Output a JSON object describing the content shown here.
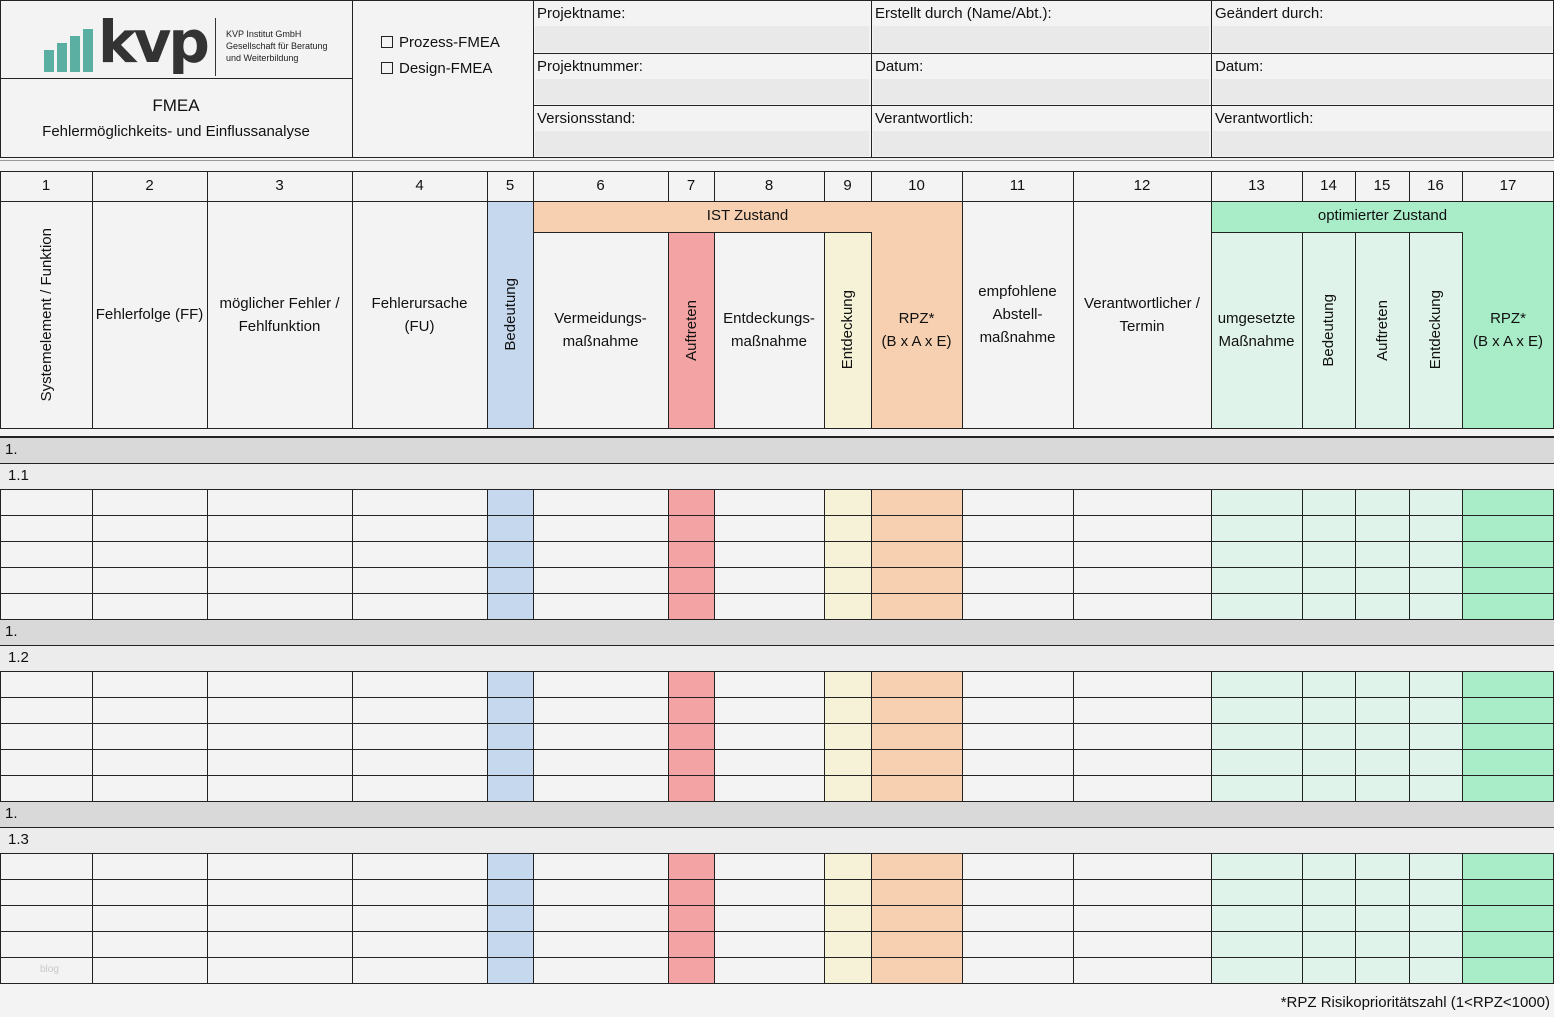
{
  "header": {
    "logo": {
      "text": "kvp",
      "company_lines": [
        "KVP Institut GmbH",
        "Gesellschaft für Beratung",
        "und Weiterbildung"
      ],
      "bar_color": "#5aaea2"
    },
    "title": "FMEA",
    "subtitle": "Fehlermöglichkeits- und Einflussanalyse",
    "checkboxes": [
      {
        "label": "Prozess-FMEA",
        "checked": false
      },
      {
        "label": "Design-FMEA",
        "checked": false
      }
    ],
    "fields": [
      [
        "Projektname:",
        "Erstellt durch (Name/Abt.):",
        "Geändert durch:"
      ],
      [
        "Projektnummer:",
        "Datum:",
        "Datum:"
      ],
      [
        "Versionsstand:",
        "Verantwortlich:",
        "Verantwortlich:"
      ]
    ]
  },
  "columns": {
    "numbers": [
      "1",
      "2",
      "3",
      "4",
      "5",
      "6",
      "7",
      "8",
      "9",
      "10",
      "11",
      "12",
      "13",
      "14",
      "15",
      "16",
      "17"
    ],
    "group_ist": "IST Zustand",
    "group_opt": "optimierter Zustand",
    "labels": [
      "Systemelement / Funktion",
      "Fehlerfolge (FF)",
      "möglicher Fehler / Fehlfunktion",
      "Fehlerursache (FU)",
      "Bedeutung",
      "Vermeidungs-maßnahme",
      "Auftreten",
      "Entdeckungs-maßnahme",
      "Entdeckung",
      "RPZ* (B x A x E)",
      "empfohlene Abstell-maßnahme",
      "Verantwortlicher / Termin",
      "umgesetzte Maßnahme",
      "Bedeutung",
      "Auftreten",
      "Entdeckung",
      "RPZ* (B x A x E)"
    ],
    "label_lines": [
      [
        "Systemelement / Funktion"
      ],
      [
        "Fehlerfolge (FF)"
      ],
      [
        "möglicher Fehler /",
        "Fehlfunktion"
      ],
      [
        "Fehlerursache",
        "(FU)"
      ],
      [
        "Bedeutung"
      ],
      [
        "Vermeidungs-",
        "maßnahme"
      ],
      [
        "Auftreten"
      ],
      [
        "Entdeckungs-",
        "maßnahme"
      ],
      [
        "Entdeckung"
      ],
      [
        "RPZ*",
        "(B x A x E)"
      ],
      [
        "empfohlene",
        "Abstell-",
        "maßnahme"
      ],
      [
        "Verantwortlicher /",
        "Termin"
      ],
      [
        "umgesetzte",
        "Maßnahme"
      ],
      [
        "Bedeutung"
      ],
      [
        "Auftreten"
      ],
      [
        "Entdeckung"
      ],
      [
        "RPZ*",
        "(B x A x E)"
      ]
    ]
  },
  "colors": {
    "bedeutung": "#c5d8ee",
    "auftreten": "#f3a3a3",
    "entdeckung": "#f6f2d8",
    "rpz": "#f6d0b0",
    "ist_header": "#f6d0b0",
    "opt_light": "#dff3ea",
    "opt_rpz": "#a8ecc8",
    "opt_header": "#a8ecc8",
    "section_row": "#d9d9d9",
    "sub_row": "#ececec"
  },
  "sections": [
    {
      "label": "1.",
      "sub": "1.1",
      "rows": 5
    },
    {
      "label": "1.",
      "sub": "1.2",
      "rows": 5
    },
    {
      "label": "1.",
      "sub": "1.3",
      "rows": 5
    }
  ],
  "watermark": "blog",
  "footnote": "*RPZ Risikoprioritätszahl (1<RPZ<1000)"
}
